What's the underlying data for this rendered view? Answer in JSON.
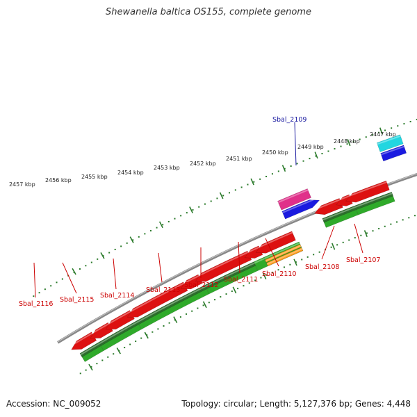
{
  "header": {
    "title": "Shewanella baltica OS155, complete genome"
  },
  "footer": {
    "accession": "Accession: NC_009052",
    "topology": "Topology: circular; Length: 5,127,376 bp; Genes: 4,448"
  },
  "colors": {
    "backbone": "#888888",
    "tick": "#2a7a2a",
    "forward_gene": "#dd1111",
    "reverse_gene": "#dd1111",
    "cds_green": "#2faa2a",
    "cds_dark_green": "#2c6e2c",
    "pink_feature": "#e0308a",
    "blue_feature": "#1a1ae0",
    "cyan_feature": "#22d6e0",
    "orange_feature": "#ff9a1a",
    "label_red": "#cc0000",
    "label_blue": "#1a1aa0"
  },
  "kbp_labels": [
    "2457 kbp",
    "2456 kbp",
    "2455 kbp",
    "2454 kbp",
    "2453 kbp",
    "2452 kbp",
    "2451 kbp",
    "2450 kbp",
    "2449 kbp",
    "2448 kbp",
    "2447 kbp"
  ],
  "gene_labels": {
    "top": [
      "Sbal_2109"
    ],
    "bottom": [
      "Sbal_2116",
      "Sbal_2115",
      "Sbal_2114",
      "Sbal_2113",
      "Sbal_2112",
      "Sbal_2111",
      "Sbal_2110",
      "Sbal_2108",
      "Sbal_2107"
    ]
  }
}
